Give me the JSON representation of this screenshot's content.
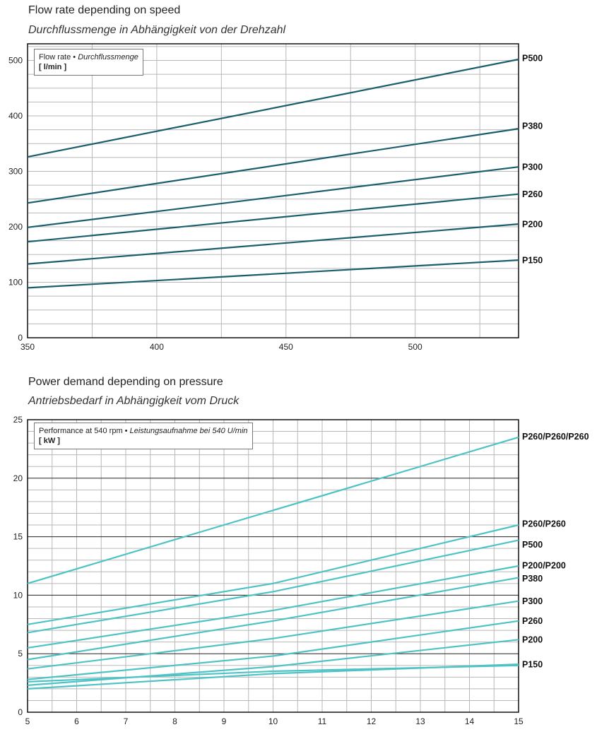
{
  "chart_data": [
    {
      "type": "line",
      "title": "Flow rate depending on speed",
      "subtitle": "Durchflussmenge in Abhängigkeit von der Drehzahl",
      "legend": {
        "label": "Flow rate",
        "label_italic": "Durchflussmenge",
        "unit": "[ l/min ]",
        "placement": "top-left"
      },
      "xlim": [
        350,
        540
      ],
      "ylim": [
        0,
        530
      ],
      "x_ticks": [
        350,
        400,
        450,
        500
      ],
      "y_ticks": [
        0,
        100,
        200,
        300,
        400,
        500
      ],
      "grid": true,
      "color": "#1a5e6e",
      "series": [
        {
          "name": "P500",
          "x": [
            350,
            540
          ],
          "y": [
            326,
            502
          ]
        },
        {
          "name": "P380",
          "x": [
            350,
            540
          ],
          "y": [
            243,
            377
          ]
        },
        {
          "name": "P300",
          "x": [
            350,
            540
          ],
          "y": [
            199,
            308
          ]
        },
        {
          "name": "P260",
          "x": [
            350,
            540
          ],
          "y": [
            173,
            259
          ]
        },
        {
          "name": "P200",
          "x": [
            350,
            540
          ],
          "y": [
            133,
            205
          ]
        },
        {
          "name": "P150",
          "x": [
            350,
            540
          ],
          "y": [
            90,
            140
          ]
        }
      ]
    },
    {
      "type": "line",
      "title": "Power demand depending on pressure",
      "subtitle": "Antriebsbedarf in Abhängigkeit vom Druck",
      "legend": {
        "label": "Performance at 540 rpm",
        "label_italic": "Leistungsaufnahme bei 540 U/min",
        "unit": "[ kW ]",
        "placement": "top-left"
      },
      "xlim": [
        5,
        15
      ],
      "ylim": [
        0,
        25
      ],
      "x_ticks": [
        5,
        6,
        7,
        8,
        9,
        10,
        11,
        12,
        13,
        14,
        15
      ],
      "y_ticks": [
        0,
        5,
        10,
        15,
        20,
        25
      ],
      "grid": true,
      "color": "#4ec3c6",
      "series": [
        {
          "name": "P260/P260/P260",
          "x": [
            5,
            15
          ],
          "y": [
            11.0,
            23.5
          ]
        },
        {
          "name": "P260/P260",
          "x": [
            5,
            10,
            15
          ],
          "y": [
            7.5,
            11.0,
            16.0
          ]
        },
        {
          "name": "P500",
          "x": [
            5,
            10,
            15
          ],
          "y": [
            6.8,
            10.3,
            14.7
          ]
        },
        {
          "name": "P200/P200",
          "x": [
            5,
            10,
            15
          ],
          "y": [
            5.5,
            8.7,
            12.5
          ]
        },
        {
          "name": "P380",
          "x": [
            5,
            10,
            15
          ],
          "y": [
            4.5,
            7.8,
            11.5
          ]
        },
        {
          "name": "P300",
          "x": [
            5,
            10,
            15
          ],
          "y": [
            3.7,
            6.3,
            9.5
          ]
        },
        {
          "name": "P260",
          "x": [
            5,
            10,
            15
          ],
          "y": [
            2.8,
            4.8,
            7.8
          ]
        },
        {
          "name": "P200",
          "x": [
            5,
            10,
            15
          ],
          "y": [
            2.3,
            3.9,
            6.2
          ]
        },
        {
          "name": "P150",
          "x": [
            5,
            10,
            15
          ],
          "y": [
            2.0,
            3.3,
            4.1
          ]
        },
        {
          "name": "",
          "x": [
            5,
            10,
            15
          ],
          "y": [
            2.6,
            3.5,
            4.0
          ]
        }
      ]
    }
  ]
}
